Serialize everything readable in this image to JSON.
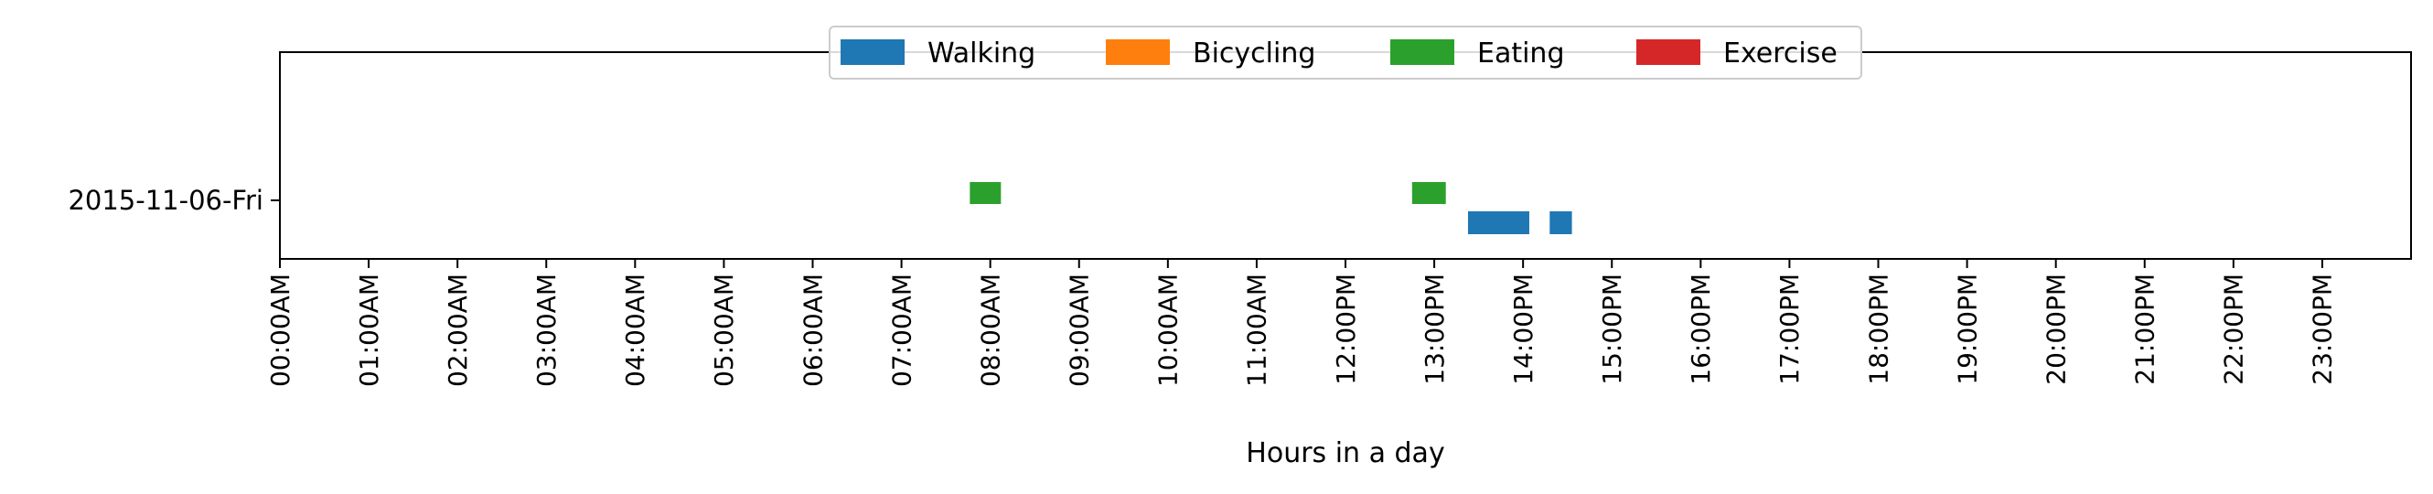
{
  "chart_data": {
    "type": "bar",
    "title": "",
    "xlabel": "Hours in a day",
    "ylabel": "",
    "xlim": [
      0,
      24
    ],
    "categories": [
      "2015-11-06-Fri"
    ],
    "x_ticks": [
      {
        "value": 0,
        "label": "00:00AM"
      },
      {
        "value": 1,
        "label": "01:00AM"
      },
      {
        "value": 2,
        "label": "02:00AM"
      },
      {
        "value": 3,
        "label": "03:00AM"
      },
      {
        "value": 4,
        "label": "04:00AM"
      },
      {
        "value": 5,
        "label": "05:00AM"
      },
      {
        "value": 6,
        "label": "06:00AM"
      },
      {
        "value": 7,
        "label": "07:00AM"
      },
      {
        "value": 8,
        "label": "08:00AM"
      },
      {
        "value": 9,
        "label": "09:00AM"
      },
      {
        "value": 10,
        "label": "10:00AM"
      },
      {
        "value": 11,
        "label": "11:00AM"
      },
      {
        "value": 12,
        "label": "12:00PM"
      },
      {
        "value": 13,
        "label": "13:00PM"
      },
      {
        "value": 14,
        "label": "14:00PM"
      },
      {
        "value": 15,
        "label": "15:00PM"
      },
      {
        "value": 16,
        "label": "16:00PM"
      },
      {
        "value": 17,
        "label": "17:00PM"
      },
      {
        "value": 18,
        "label": "18:00PM"
      },
      {
        "value": 19,
        "label": "19:00PM"
      },
      {
        "value": 20,
        "label": "20:00PM"
      },
      {
        "value": 21,
        "label": "21:00PM"
      },
      {
        "value": 22,
        "label": "22:00PM"
      },
      {
        "value": 23,
        "label": "23:00PM"
      }
    ],
    "legend_position": "top-center",
    "grid": false,
    "series": [
      {
        "name": "Walking",
        "color": "#1f77b4",
        "lane": "lower",
        "intervals": [
          {
            "start": 13.38,
            "end": 14.07
          },
          {
            "start": 14.3,
            "end": 14.55
          }
        ]
      },
      {
        "name": "Bicycling",
        "color": "#ff7f0e",
        "lane": "lower",
        "intervals": []
      },
      {
        "name": "Eating",
        "color": "#2ca02c",
        "lane": "upper",
        "intervals": [
          {
            "start": 7.77,
            "end": 8.12
          },
          {
            "start": 12.75,
            "end": 13.13
          }
        ]
      },
      {
        "name": "Exercise",
        "color": "#d62728",
        "lane": "upper",
        "intervals": []
      }
    ]
  }
}
